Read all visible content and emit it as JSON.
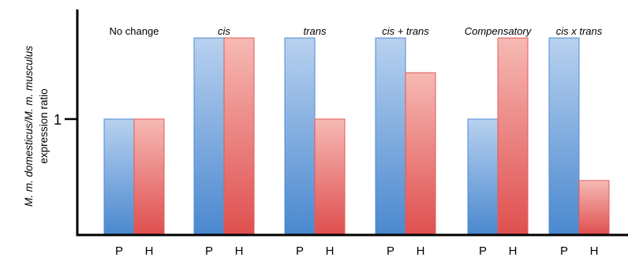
{
  "chart_data": {
    "type": "bar",
    "title": "",
    "ylabel_line1": "M. m. domesticus/M. m. musculus",
    "ylabel_line2": "expression ratio",
    "y_ticks": [
      {
        "value": 1,
        "label": "1"
      }
    ],
    "ylim": [
      0,
      2.6
    ],
    "series_labels": [
      "P",
      "H"
    ],
    "colors": {
      "P": "#4f8bd1",
      "H": "#e15a5a"
    },
    "groups": [
      {
        "name": "No change",
        "italic": false,
        "values": {
          "P": 1.0,
          "H": 1.0
        }
      },
      {
        "name": "cis",
        "italic": true,
        "values": {
          "P": 1.7,
          "H": 1.7
        }
      },
      {
        "name": "trans",
        "italic": true,
        "values": {
          "P": 1.7,
          "H": 1.0
        }
      },
      {
        "name": "cis + trans",
        "italic": true,
        "values": {
          "P": 1.7,
          "H": 1.4
        }
      },
      {
        "name": "Compensatory",
        "italic": true,
        "values": {
          "P": 1.0,
          "H": 1.7
        }
      },
      {
        "name": "cis x trans",
        "italic": true,
        "values": {
          "P": 1.7,
          "H": 0.47
        }
      }
    ]
  }
}
